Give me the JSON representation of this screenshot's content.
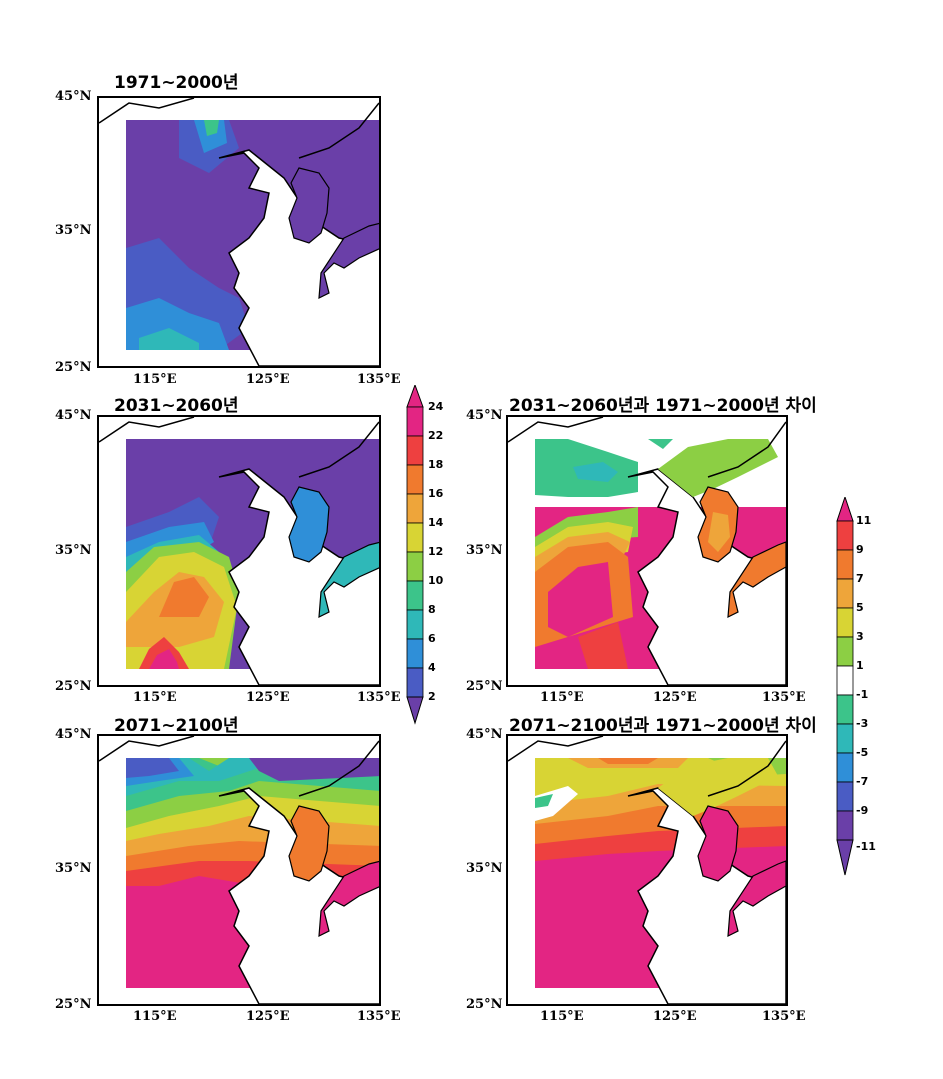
{
  "colors": {
    "purple": "#6a3fa8",
    "indigo": "#4a5cc4",
    "blue": "#2f8fd8",
    "teal": "#2fb8b8",
    "sea_green": "#3cc48a",
    "green": "#8ccf44",
    "yellow": "#d8d434",
    "orange_yellow": "#eea53a",
    "orange": "#f07a2e",
    "red": "#ee4040",
    "magenta": "#e32583",
    "white": "#ffffff",
    "coast": "#000000"
  },
  "panels": [
    {
      "title": "1971~2000년",
      "lat_labels": [
        "45°N",
        "35°N",
        "25°N"
      ],
      "lon_labels": [
        "115°E",
        "125°E",
        "135°E"
      ]
    },
    {
      "title": "2031~2060년",
      "lat_labels": [
        "45°N",
        "35°N",
        "25°N"
      ],
      "lon_labels": [
        "115°E",
        "125°E",
        "135°E"
      ]
    },
    {
      "title": "2031~2060년과 1971~2000년 차이",
      "lat_labels": [
        "45°N",
        "35°N",
        "25°N"
      ],
      "lon_labels": [
        "115°E",
        "125°E",
        "135°E"
      ]
    },
    {
      "title": "2071~2100년",
      "lat_labels": [
        "45°N",
        "35°N",
        "25°N"
      ],
      "lon_labels": [
        "115°E",
        "125°E",
        "135°E"
      ]
    },
    {
      "title": "2071~2100년과 1971~2000년 차이",
      "lat_labels": [
        "45°N",
        "35°N",
        "25°N"
      ],
      "lon_labels": [
        "115°E",
        "125°E",
        "135°E"
      ]
    }
  ],
  "colorbar_absolute": {
    "labels": [
      "24",
      "22",
      "18",
      "16",
      "14",
      "12",
      "10",
      "8",
      "6",
      "4",
      "2"
    ]
  },
  "colorbar_difference": {
    "labels": [
      "11",
      "9",
      "7",
      "5",
      "3",
      "1",
      "-1",
      "-3",
      "-5",
      "-7",
      "-9",
      "-11"
    ]
  }
}
